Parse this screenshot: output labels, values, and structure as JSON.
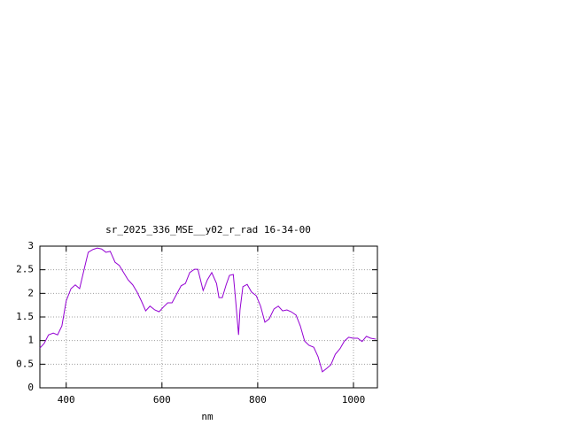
{
  "chart_data": {
    "type": "line",
    "title": "sr_2025_336_MSE__y02_r_rad 16-34-00",
    "x_label": "nm",
    "x": [
      345,
      354,
      363,
      373,
      382,
      391,
      400,
      410,
      419,
      428,
      437,
      446,
      456,
      465,
      474,
      483,
      492,
      502,
      511,
      520,
      529,
      539,
      548,
      557,
      566,
      575,
      585,
      594,
      603,
      612,
      621,
      631,
      640,
      649,
      658,
      668,
      675,
      686,
      695,
      704,
      714,
      719,
      726,
      734,
      741,
      749,
      754,
      760,
      763,
      769,
      778,
      787,
      797,
      806,
      815,
      824,
      834,
      843,
      852,
      861,
      870,
      880,
      889,
      898,
      907,
      917,
      926,
      935,
      944,
      953,
      962,
      972,
      981,
      990,
      999,
      1009,
      1018,
      1027,
      1036,
      1047
    ],
    "series": [
      {
        "color": "#9400d3",
        "values": [
          0.84,
          0.94,
          1.12,
          1.16,
          1.12,
          1.31,
          1.84,
          2.1,
          2.18,
          2.1,
          2.49,
          2.87,
          2.93,
          2.96,
          2.94,
          2.87,
          2.89,
          2.66,
          2.59,
          2.44,
          2.29,
          2.18,
          2.03,
          1.84,
          1.63,
          1.73,
          1.65,
          1.61,
          1.71,
          1.8,
          1.8,
          1.99,
          2.16,
          2.21,
          2.44,
          2.51,
          2.51,
          2.06,
          2.29,
          2.44,
          2.21,
          1.91,
          1.91,
          2.18,
          2.38,
          2.4,
          1.84,
          1.12,
          1.65,
          2.14,
          2.19,
          2.03,
          1.95,
          1.73,
          1.39,
          1.46,
          1.67,
          1.73,
          1.63,
          1.65,
          1.61,
          1.54,
          1.31,
          0.99,
          0.9,
          0.86,
          0.66,
          0.34,
          0.41,
          0.49,
          0.71,
          0.83,
          0.99,
          1.07,
          1.05,
          1.05,
          0.98,
          1.09,
          1.05,
          1.03
        ]
      }
    ],
    "xlim": [
      345,
      1050
    ],
    "xticks": [
      400,
      600,
      800,
      1000
    ],
    "ylim": [
      0,
      3
    ],
    "yticks": [
      0,
      0.5,
      1,
      1.5,
      2,
      2.5,
      3
    ],
    "grid": true
  }
}
